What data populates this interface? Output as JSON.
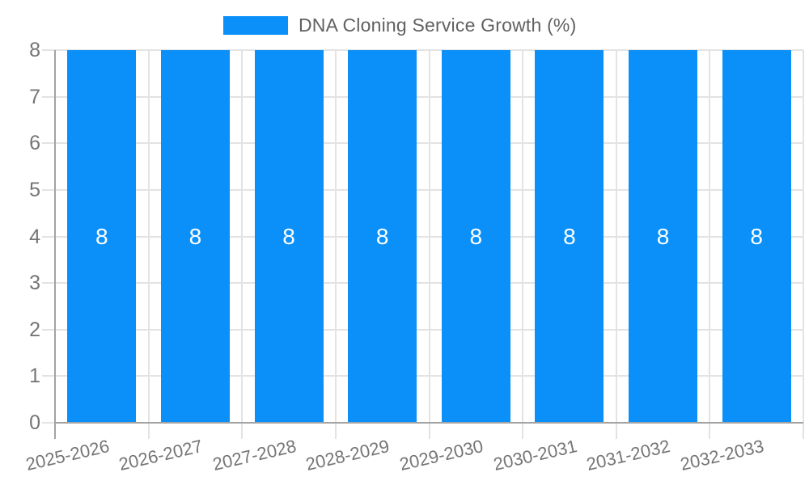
{
  "chart_data": {
    "type": "bar",
    "title": "DNA Cloning Service Growth (%)",
    "categories": [
      "2025-2026",
      "2026-2027",
      "2027-2028",
      "2028-2029",
      "2029-2030",
      "2030-2031",
      "2031-2032",
      "2032-2033"
    ],
    "values": [
      8,
      8,
      8,
      8,
      8,
      8,
      8,
      8
    ],
    "value_labels": [
      "8",
      "8",
      "8",
      "8",
      "8",
      "8",
      "8",
      "8"
    ],
    "xlabel": "",
    "ylabel": "",
    "ylim": [
      0,
      8
    ],
    "yticks": [
      0,
      1,
      2,
      3,
      4,
      5,
      6,
      7,
      8
    ],
    "grid": true,
    "legend_position": "top",
    "bar_color": "#0a90f8"
  },
  "legend": {
    "label": "DNA Cloning Service Growth (%)"
  },
  "colors": {
    "bar": "#0a90f8",
    "grid": "#e3e3e3",
    "axis": "#a3a3a3",
    "y_label_text": "#757575",
    "x_label_text": "#757575",
    "legend_text": "#616161",
    "value_label_text": "#ffffff",
    "background": "#ffffff"
  }
}
